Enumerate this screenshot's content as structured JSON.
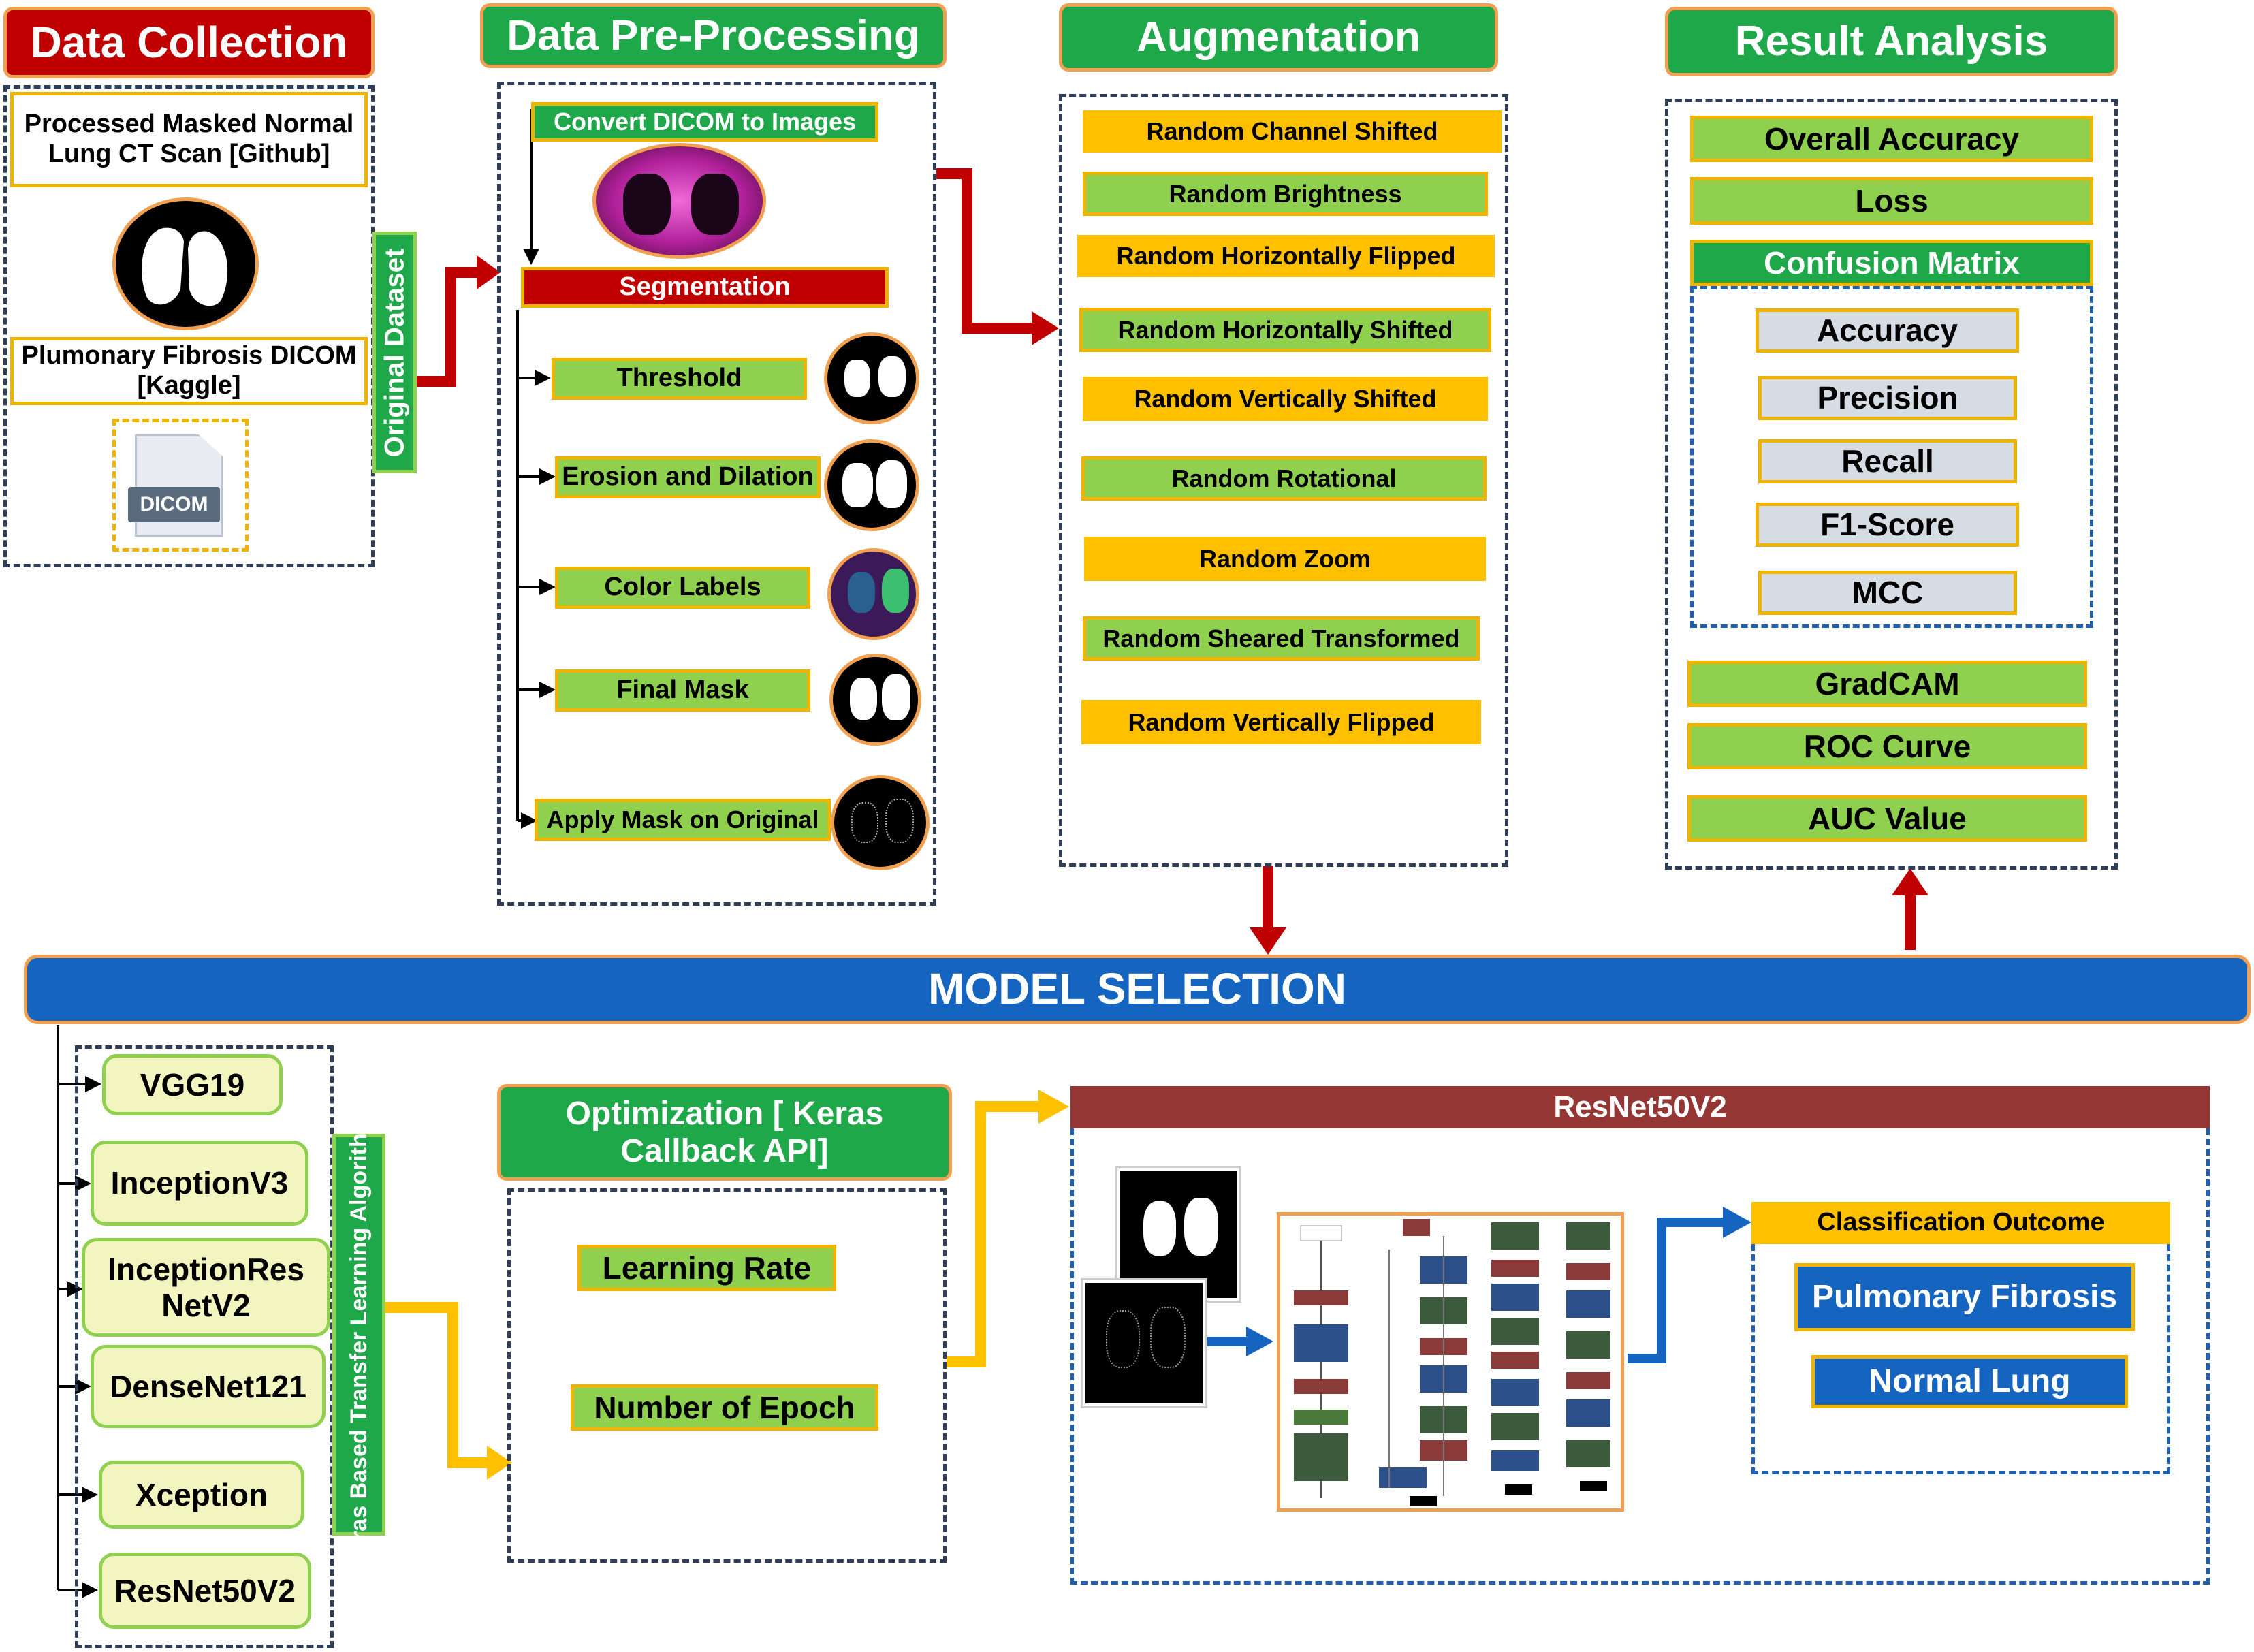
{
  "sections": {
    "data_collection": "Data Collection",
    "preprocessing": "Data Pre-Processing",
    "augmentation": "Augmentation",
    "result_analysis": "Result Analysis"
  },
  "data_collection": {
    "source1": "Processed Masked Normal Lung CT Scan [Github]",
    "source2": "Plumonary Fibrosis DICOM [Kaggle]",
    "dicom_icon_label": "DICOM",
    "side_label": "Original Dataset"
  },
  "preprocessing": {
    "convert": "Convert DICOM to Images",
    "segmentation": "Segmentation",
    "steps": [
      "Threshold",
      "Erosion and Dilation",
      "Color Labels",
      "Final Mask",
      "Apply Mask on Original"
    ]
  },
  "augmentation": {
    "items": [
      "Random Channel Shifted",
      "Random Brightness",
      "Random Horizontally  Flipped",
      "Random Horizontally  Shifted",
      "Random Vertically  Shifted",
      "Random Rotational",
      "Random Zoom",
      "Random Sheared Transformed",
      "Random Vertically Flipped"
    ]
  },
  "result_analysis": {
    "overall_accuracy": "Overall Accuracy",
    "loss": "Loss",
    "confusion_matrix": "Confusion Matrix",
    "cm_items": [
      "Accuracy",
      "Precision",
      "Recall",
      "F1-Score",
      "MCC"
    ],
    "gradcam": "GradCAM",
    "roc": "ROC Curve",
    "auc": "AUC Value"
  },
  "model_selection": "MODEL SELECTION",
  "models": {
    "items": [
      "VGG19",
      "InceptionV3",
      "InceptionRes NetV2",
      "DenseNet121",
      "Xception",
      "ResNet50V2"
    ],
    "side_label": "Keras Based Transfer Learning Algorithms"
  },
  "optimization": {
    "title": "Optimization [ Keras Callback API]",
    "items": [
      "Learning Rate",
      "Number of Epoch"
    ]
  },
  "resnet": {
    "title": "ResNet50V2",
    "classification": "Classification Outcome",
    "outcomes": [
      "Pulmonary Fibrosis",
      "Normal Lung"
    ]
  },
  "colors": {
    "red": "#c00000",
    "green": "#1fa84a",
    "light_green": "#8fd14f",
    "yellow": "#ffc000",
    "blue": "#1565c0",
    "brown": "#943634",
    "gray": "#d6dce4"
  }
}
